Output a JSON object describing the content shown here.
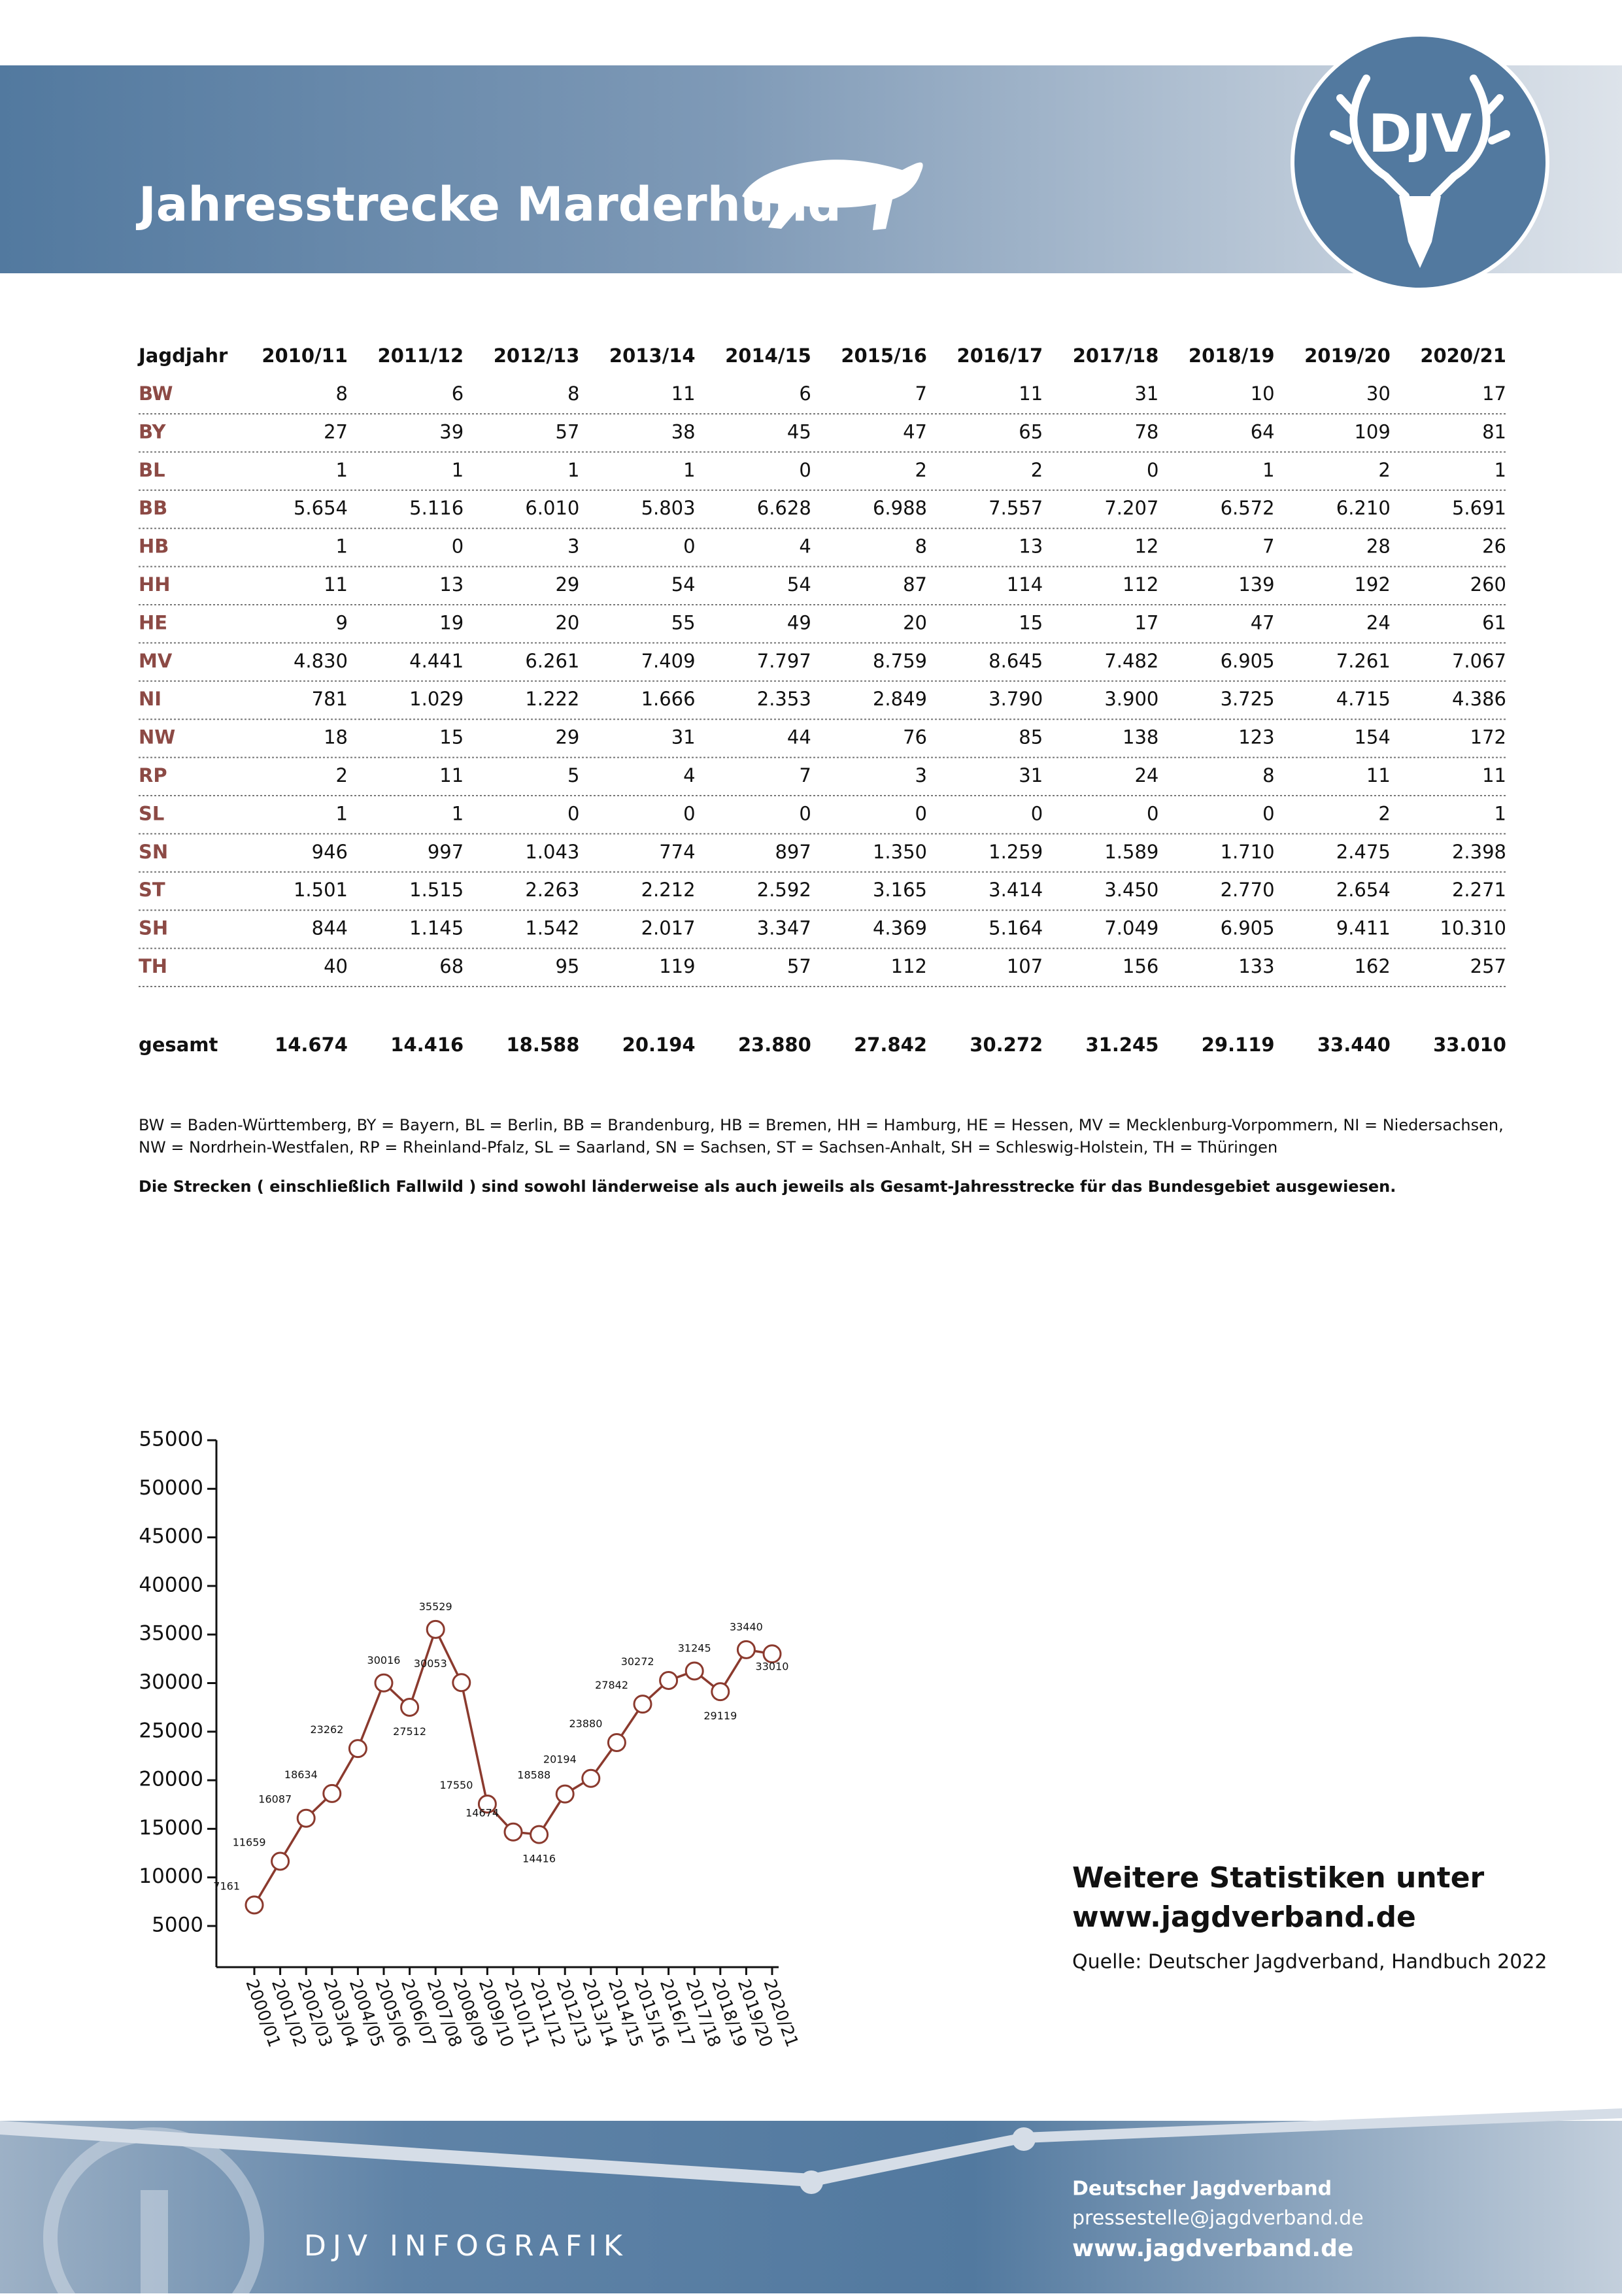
{
  "header": {
    "title": "Jahresstrecke Marderhund",
    "logo": "DJV"
  },
  "table": {
    "header": [
      "Jagdjahr",
      "2010/11",
      "2011/12",
      "2012/13",
      "2013/14",
      "2014/15",
      "2015/16",
      "2016/17",
      "2017/18",
      "2018/19",
      "2019/20",
      "2020/21"
    ],
    "rows": [
      [
        "BW",
        "8",
        "6",
        "8",
        "11",
        "6",
        "7",
        "11",
        "31",
        "10",
        "30",
        "17"
      ],
      [
        "BY",
        "27",
        "39",
        "57",
        "38",
        "45",
        "47",
        "65",
        "78",
        "64",
        "109",
        "81"
      ],
      [
        "BL",
        "1",
        "1",
        "1",
        "1",
        "0",
        "2",
        "2",
        "0",
        "1",
        "2",
        "1"
      ],
      [
        "BB",
        "5.654",
        "5.116",
        "6.010",
        "5.803",
        "6.628",
        "6.988",
        "7.557",
        "7.207",
        "6.572",
        "6.210",
        "5.691"
      ],
      [
        "HB",
        "1",
        "0",
        "3",
        "0",
        "4",
        "8",
        "13",
        "12",
        "7",
        "28",
        "26"
      ],
      [
        "HH",
        "11",
        "13",
        "29",
        "54",
        "54",
        "87",
        "114",
        "112",
        "139",
        "192",
        "260"
      ],
      [
        "HE",
        "9",
        "19",
        "20",
        "55",
        "49",
        "20",
        "15",
        "17",
        "47",
        "24",
        "61"
      ],
      [
        "MV",
        "4.830",
        "4.441",
        "6.261",
        "7.409",
        "7.797",
        "8.759",
        "8.645",
        "7.482",
        "6.905",
        "7.261",
        "7.067"
      ],
      [
        "NI",
        "781",
        "1.029",
        "1.222",
        "1.666",
        "2.353",
        "2.849",
        "3.790",
        "3.900",
        "3.725",
        "4.715",
        "4.386"
      ],
      [
        "NW",
        "18",
        "15",
        "29",
        "31",
        "44",
        "76",
        "85",
        "138",
        "123",
        "154",
        "172"
      ],
      [
        "RP",
        "2",
        "11",
        "5",
        "4",
        "7",
        "3",
        "31",
        "24",
        "8",
        "11",
        "11"
      ],
      [
        "SL",
        "1",
        "1",
        "0",
        "0",
        "0",
        "0",
        "0",
        "0",
        "0",
        "2",
        "1"
      ],
      [
        "SN",
        "946",
        "997",
        "1.043",
        "774",
        "897",
        "1.350",
        "1.259",
        "1.589",
        "1.710",
        "2.475",
        "2.398"
      ],
      [
        "ST",
        "1.501",
        "1.515",
        "2.263",
        "2.212",
        "2.592",
        "3.165",
        "3.414",
        "3.450",
        "2.770",
        "2.654",
        "2.271"
      ],
      [
        "SH",
        "844",
        "1.145",
        "1.542",
        "2.017",
        "3.347",
        "4.369",
        "5.164",
        "7.049",
        "6.905",
        "9.411",
        "10.310"
      ],
      [
        "TH",
        "40",
        "68",
        "95",
        "119",
        "57",
        "112",
        "107",
        "156",
        "133",
        "162",
        "257"
      ]
    ],
    "total": [
      "gesamt",
      "14.674",
      "14.416",
      "18.588",
      "20.194",
      "23.880",
      "27.842",
      "30.272",
      "31.245",
      "29.119",
      "33.440",
      "33.010"
    ]
  },
  "legend_lines": [
    "BW = Baden-Württemberg, BY = Bayern, BL = Berlin, BB = Brandenburg, HB = Bremen, HH = Hamburg, HE = Hessen, MV = Mecklenburg-Vorpommern, NI = Niedersachsen,",
    "NW = Nordrhein-Westfalen, RP = Rheinland-Pfalz, SL = Saarland, SN = Sachsen, ST = Sachsen-Anhalt, SH = Schleswig-Holstein, TH = Thüringen"
  ],
  "note": "Die Strecken ( einschließlich Fallwild ) sind sowohl länderweise als auch jeweils als Gesamt-Jahresstrecke für das Bundesgebiet ausgewiesen.",
  "chart_data": {
    "type": "line",
    "categories": [
      "2000/01",
      "2001/02",
      "2002/03",
      "2003/04",
      "2004/05",
      "2005/06",
      "2006/07",
      "2007/08",
      "2008/09",
      "2009/10",
      "2010/11",
      "2011/12",
      "2012/13",
      "2013/14",
      "2014/15",
      "2015/16",
      "2016/17",
      "2017/18",
      "2018/19",
      "2019/20",
      "2020/21"
    ],
    "values": [
      7161,
      11659,
      16087,
      18634,
      23262,
      30016,
      27512,
      35529,
      30053,
      17550,
      14674,
      14416,
      18588,
      20194,
      23880,
      27842,
      30272,
      31245,
      29119,
      33440,
      33010
    ],
    "color": "#8b3a2e",
    "ylim": [
      0,
      55000
    ],
    "yticks": [
      5000,
      10000,
      15000,
      20000,
      25000,
      30000,
      35000,
      40000,
      45000,
      50000,
      55000
    ]
  },
  "promo": {
    "line1": "Weitere Statistiken unter",
    "line2": "www.jagdverband.de",
    "source": "Quelle: Deutscher Jagdverband, Handbuch 2022"
  },
  "footer": {
    "label": "DJV INFOGRAFIK",
    "org": "Deutscher Jagdverband",
    "email": "pressestelle@jagdverband.de",
    "web": "www.jagdverband.de"
  }
}
